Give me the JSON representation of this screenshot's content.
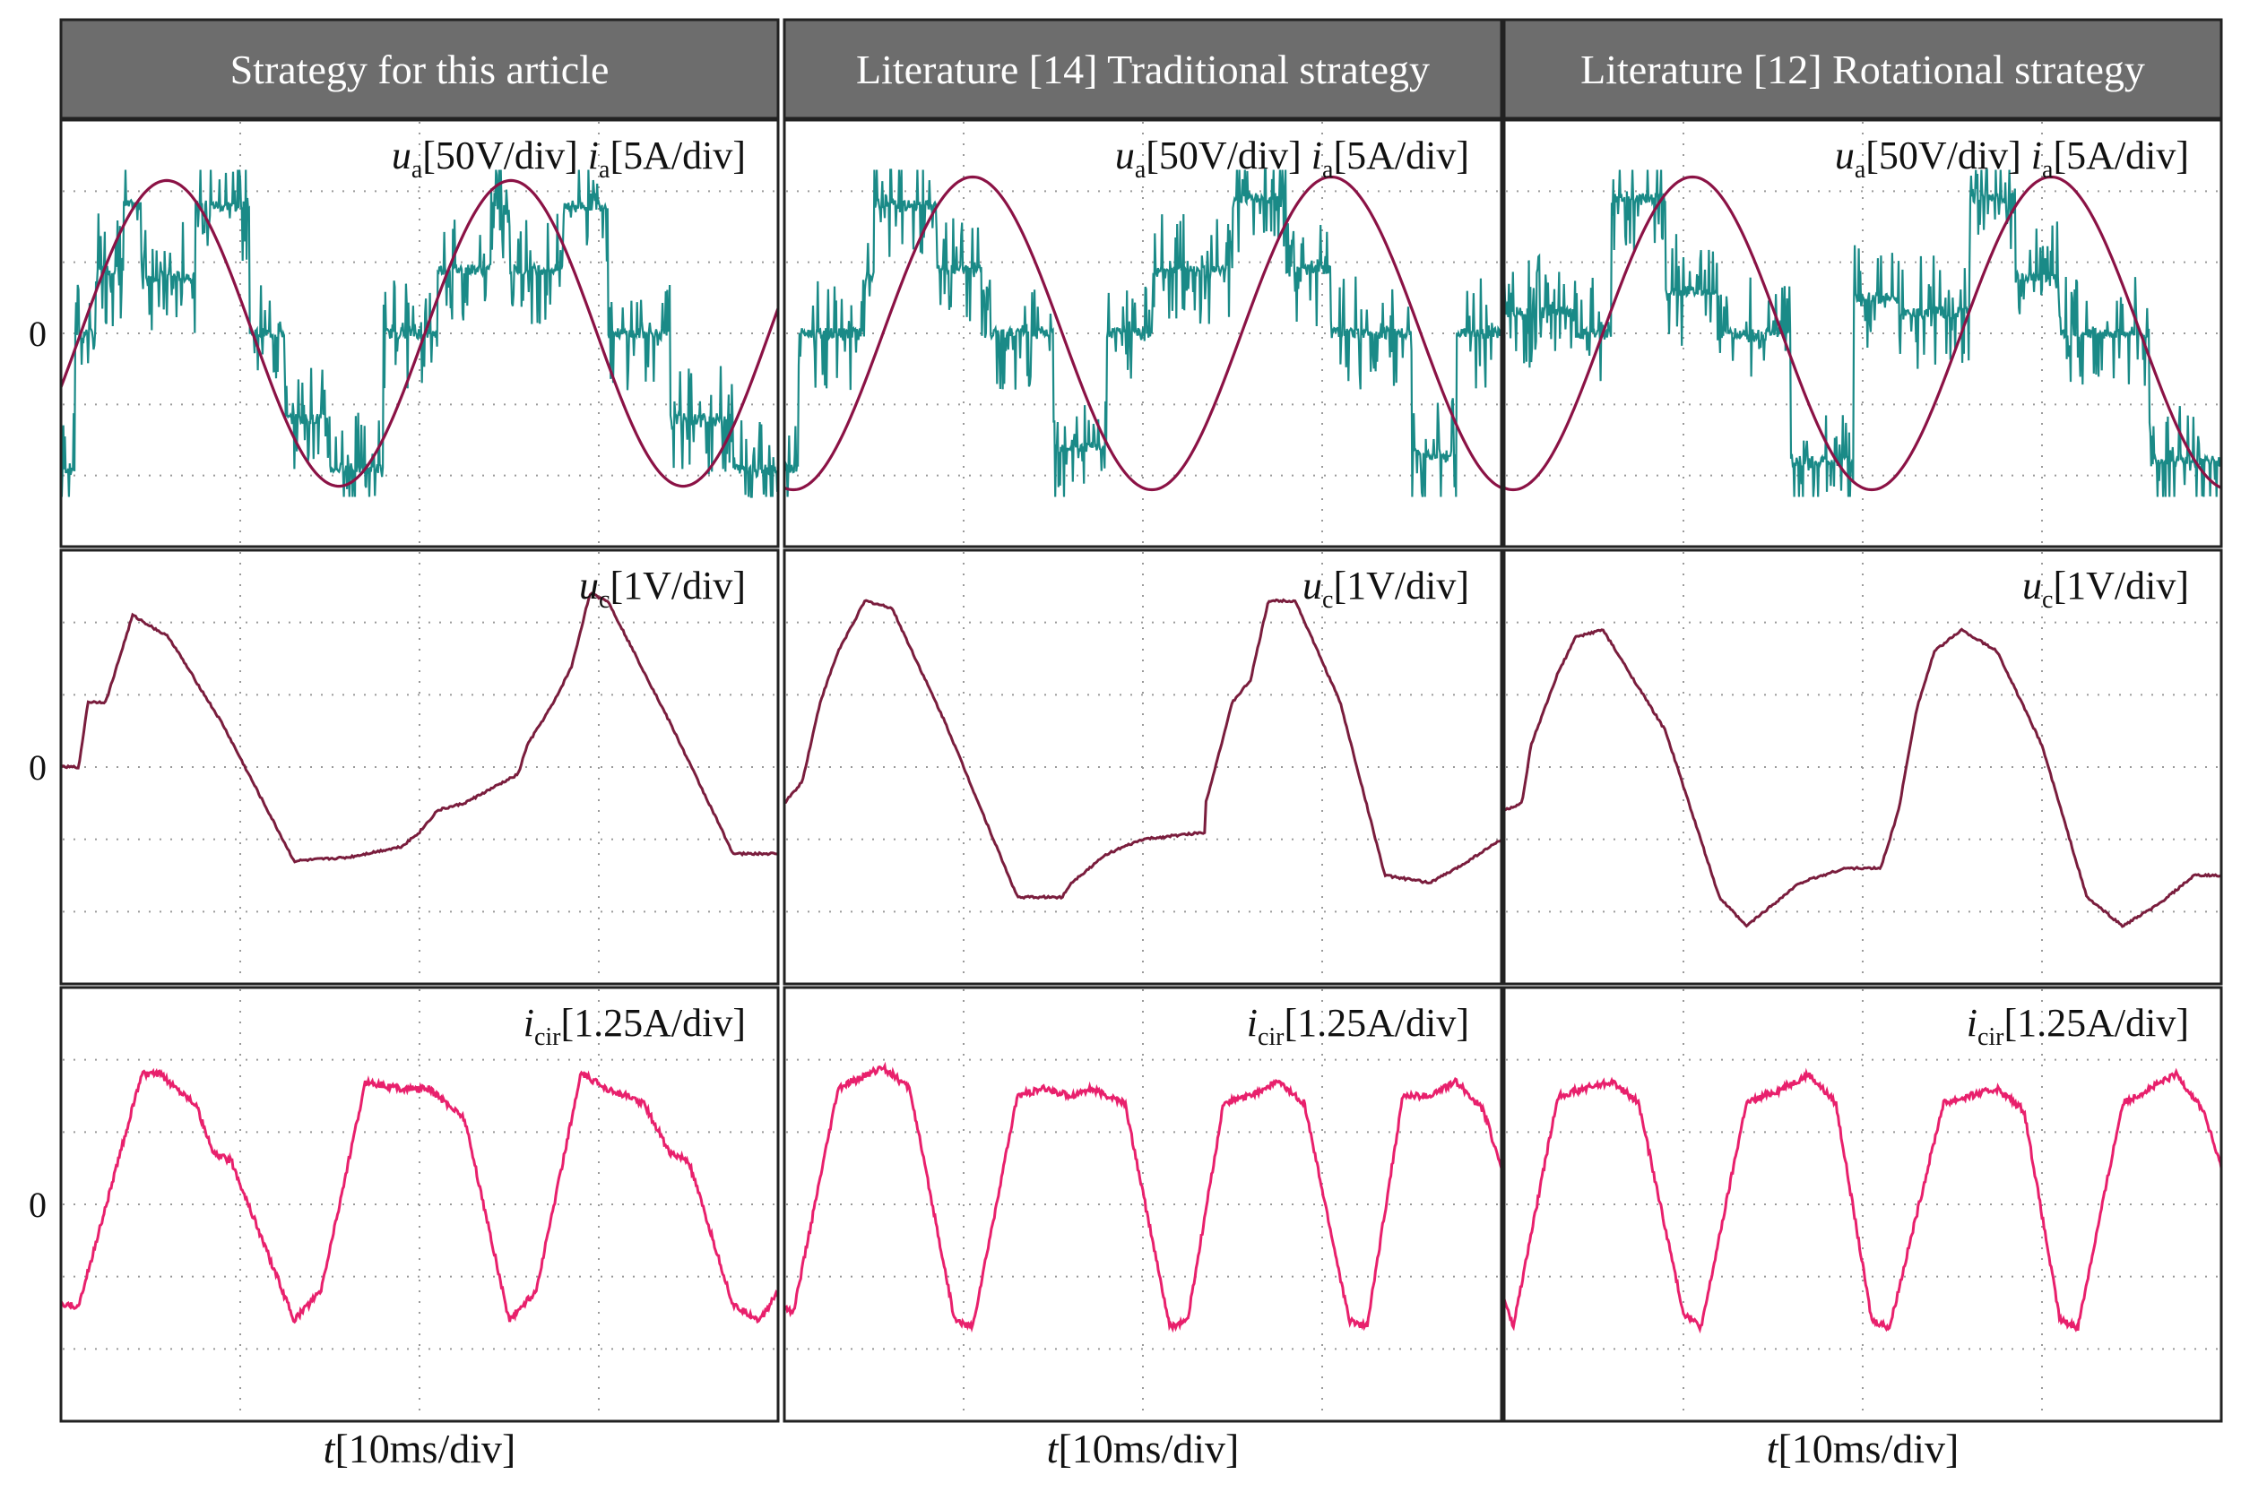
{
  "chart_data": {
    "type": "line",
    "columns": [
      {
        "id": "this",
        "title": "Strategy for this article"
      },
      {
        "id": "trad",
        "title": "Literature [14] Traditional strategy"
      },
      {
        "id": "rot",
        "title": "Literature [12] Rotational strategy"
      }
    ],
    "rows": [
      {
        "id": "ua_ia",
        "zero_label": "0",
        "label_parts": [
          {
            "main": "u",
            "sub": "a",
            "rest": "[50V/div]"
          },
          {
            "main": "i",
            "sub": "a",
            "rest": "[5A/div]"
          }
        ]
      },
      {
        "id": "uc",
        "zero_label": "0",
        "label_parts": [
          {
            "main": "u",
            "sub": "c",
            "rest": "[1V/div]"
          }
        ]
      },
      {
        "id": "icir",
        "zero_label": "0",
        "label_parts": [
          {
            "main": "i",
            "sub": "cir",
            "rest": "[1.25A/div]"
          }
        ]
      }
    ],
    "x_axis": {
      "main": "t",
      "rest": "[10ms/div]",
      "divisions": 4,
      "units": "ms",
      "per_div": 10
    },
    "y_divisions": 6,
    "series": {
      "ua_ia": {
        "this": {
          "ua_steps_div": [
            [
              0,
              -1.9
            ],
            [
              0.08,
              0
            ],
            [
              0.2,
              0.9
            ],
            [
              0.35,
              1.8
            ],
            [
              0.45,
              0.8
            ],
            [
              0.75,
              1.8
            ],
            [
              1.05,
              0
            ],
            [
              1.25,
              -1.2
            ],
            [
              1.5,
              -1.9
            ],
            [
              1.8,
              0
            ],
            [
              2.1,
              0.9
            ],
            [
              2.4,
              1.8
            ],
            [
              2.5,
              0.9
            ],
            [
              2.8,
              1.8
            ],
            [
              3.05,
              0
            ],
            [
              3.4,
              -1.2
            ],
            [
              3.75,
              -1.9
            ],
            [
              4.0,
              -1.9
            ]
          ],
          "ia_amp_div": 2.15,
          "ia_phase_div": 1.55,
          "ia_period_div": 1.92
        },
        "trad": {
          "ua_steps_div": [
            [
              0,
              -1.9
            ],
            [
              0.08,
              0
            ],
            [
              0.45,
              0.8
            ],
            [
              0.5,
              1.8
            ],
            [
              0.85,
              0.9
            ],
            [
              1.1,
              0
            ],
            [
              1.5,
              -1.6
            ],
            [
              1.8,
              0
            ],
            [
              2.05,
              0.9
            ],
            [
              2.5,
              1.9
            ],
            [
              2.8,
              0.9
            ],
            [
              3.05,
              0
            ],
            [
              3.5,
              -1.7
            ],
            [
              3.75,
              0
            ],
            [
              4.0,
              0
            ]
          ],
          "ia_amp_div": 2.2,
          "ia_phase_div": 0.05,
          "ia_period_div": 2.0
        },
        "rot": {
          "ua_steps_div": [
            [
              0,
              0.3
            ],
            [
              0.4,
              0
            ],
            [
              0.6,
              1.9
            ],
            [
              0.9,
              0.6
            ],
            [
              1.2,
              0
            ],
            [
              1.6,
              -1.8
            ],
            [
              1.95,
              0.5
            ],
            [
              2.2,
              0.3
            ],
            [
              2.6,
              1.9
            ],
            [
              2.85,
              0.8
            ],
            [
              3.1,
              0
            ],
            [
              3.6,
              -1.8
            ],
            [
              4.0,
              -1.8
            ]
          ],
          "ia_amp_div": 2.2,
          "ia_phase_div": 0.05,
          "ia_period_div": 2.0
        }
      },
      "uc": {
        "this": [
          [
            0,
            0
          ],
          [
            0.1,
            0
          ],
          [
            0.15,
            0.9
          ],
          [
            0.25,
            0.9
          ],
          [
            0.4,
            2.1
          ],
          [
            0.6,
            1.8
          ],
          [
            0.9,
            0.6
          ],
          [
            1.3,
            -1.3
          ],
          [
            1.6,
            -1.25
          ],
          [
            1.9,
            -1.1
          ],
          [
            2.0,
            -0.9
          ],
          [
            2.1,
            -0.6
          ],
          [
            2.25,
            -0.5
          ],
          [
            2.55,
            -0.1
          ],
          [
            2.6,
            0.3
          ],
          [
            2.65,
            0.5
          ],
          [
            2.75,
            0.9
          ],
          [
            2.85,
            1.4
          ],
          [
            2.95,
            2.4
          ],
          [
            3.05,
            2.3
          ],
          [
            3.4,
            0.6
          ],
          [
            3.75,
            -1.2
          ],
          [
            4.0,
            -1.2
          ]
        ],
        "trad": [
          [
            0,
            -0.5
          ],
          [
            0.1,
            -0.2
          ],
          [
            0.2,
            0.9
          ],
          [
            0.3,
            1.6
          ],
          [
            0.45,
            2.3
          ],
          [
            0.6,
            2.2
          ],
          [
            0.9,
            0.6
          ],
          [
            1.1,
            -0.6
          ],
          [
            1.3,
            -1.8
          ],
          [
            1.55,
            -1.8
          ],
          [
            1.6,
            -1.6
          ],
          [
            1.8,
            -1.2
          ],
          [
            2.0,
            -1.0
          ],
          [
            2.35,
            -0.9
          ],
          [
            2.35,
            -0.5
          ],
          [
            2.5,
            0.9
          ],
          [
            2.6,
            1.2
          ],
          [
            2.7,
            2.3
          ],
          [
            2.85,
            2.3
          ],
          [
            3.1,
            0.9
          ],
          [
            3.35,
            -1.5
          ],
          [
            3.6,
            -1.6
          ],
          [
            3.75,
            -1.4
          ],
          [
            4.0,
            -1.0
          ]
        ],
        "rot": [
          [
            0,
            -0.6
          ],
          [
            0.1,
            -0.5
          ],
          [
            0.15,
            0.3
          ],
          [
            0.3,
            1.3
          ],
          [
            0.4,
            1.8
          ],
          [
            0.55,
            1.9
          ],
          [
            0.9,
            0.5
          ],
          [
            1.2,
            -1.8
          ],
          [
            1.35,
            -2.2
          ],
          [
            1.65,
            -1.6
          ],
          [
            1.9,
            -1.4
          ],
          [
            2.1,
            -1.4
          ],
          [
            2.2,
            -0.6
          ],
          [
            2.3,
            0.8
          ],
          [
            2.4,
            1.6
          ],
          [
            2.55,
            1.9
          ],
          [
            2.75,
            1.6
          ],
          [
            3.0,
            0.3
          ],
          [
            3.25,
            -1.8
          ],
          [
            3.45,
            -2.2
          ],
          [
            3.65,
            -1.9
          ],
          [
            3.85,
            -1.5
          ],
          [
            4.0,
            -1.5
          ]
        ]
      },
      "icir": {
        "this": [
          [
            0,
            -1.4
          ],
          [
            0.1,
            -1.4
          ],
          [
            0.45,
            1.8
          ],
          [
            0.55,
            1.8
          ],
          [
            0.75,
            1.4
          ],
          [
            0.85,
            0.7
          ],
          [
            0.95,
            0.6
          ],
          [
            1.3,
            -1.6
          ],
          [
            1.45,
            -1.2
          ],
          [
            1.7,
            1.7
          ],
          [
            1.9,
            1.6
          ],
          [
            2.05,
            1.6
          ],
          [
            2.25,
            1.2
          ],
          [
            2.5,
            -1.6
          ],
          [
            2.65,
            -1.2
          ],
          [
            2.9,
            1.8
          ],
          [
            3.05,
            1.6
          ],
          [
            3.25,
            1.4
          ],
          [
            3.4,
            0.7
          ],
          [
            3.5,
            0.6
          ],
          [
            3.75,
            -1.4
          ],
          [
            3.9,
            -1.6
          ],
          [
            4.0,
            -1.2
          ]
        ],
        "trad": [
          [
            0,
            -1.4
          ],
          [
            0.05,
            -1.5
          ],
          [
            0.3,
            1.6
          ],
          [
            0.55,
            1.9
          ],
          [
            0.7,
            1.6
          ],
          [
            0.95,
            -1.6
          ],
          [
            1.05,
            -1.7
          ],
          [
            1.3,
            1.5
          ],
          [
            1.45,
            1.6
          ],
          [
            1.6,
            1.5
          ],
          [
            1.7,
            1.6
          ],
          [
            1.9,
            1.4
          ],
          [
            2.15,
            -1.7
          ],
          [
            2.25,
            -1.6
          ],
          [
            2.45,
            1.4
          ],
          [
            2.6,
            1.5
          ],
          [
            2.75,
            1.7
          ],
          [
            2.9,
            1.4
          ],
          [
            3.15,
            -1.6
          ],
          [
            3.25,
            -1.7
          ],
          [
            3.45,
            1.5
          ],
          [
            3.6,
            1.5
          ],
          [
            3.75,
            1.7
          ],
          [
            3.9,
            1.3
          ],
          [
            4.0,
            0.5
          ]
        ],
        "rot": [
          [
            0,
            -1.3
          ],
          [
            0.05,
            -1.7
          ],
          [
            0.3,
            1.5
          ],
          [
            0.45,
            1.6
          ],
          [
            0.6,
            1.7
          ],
          [
            0.75,
            1.4
          ],
          [
            1.0,
            -1.5
          ],
          [
            1.1,
            -1.7
          ],
          [
            1.35,
            1.4
          ],
          [
            1.55,
            1.6
          ],
          [
            1.7,
            1.8
          ],
          [
            1.85,
            1.4
          ],
          [
            2.05,
            -1.6
          ],
          [
            2.15,
            -1.7
          ],
          [
            2.45,
            1.4
          ],
          [
            2.6,
            1.5
          ],
          [
            2.75,
            1.6
          ],
          [
            2.9,
            1.3
          ],
          [
            3.1,
            -1.6
          ],
          [
            3.2,
            -1.7
          ],
          [
            3.45,
            1.4
          ],
          [
            3.6,
            1.6
          ],
          [
            3.75,
            1.8
          ],
          [
            3.9,
            1.3
          ],
          [
            4.0,
            0.5
          ]
        ]
      }
    },
    "colors": {
      "header_bg": "#6d6d6d",
      "ua": "#1a8a87",
      "ia": "#8b1245",
      "uc": "#7a1d3d",
      "icir": "#e8206c",
      "grid": "#9a9a9a",
      "frame": "#222222"
    }
  }
}
